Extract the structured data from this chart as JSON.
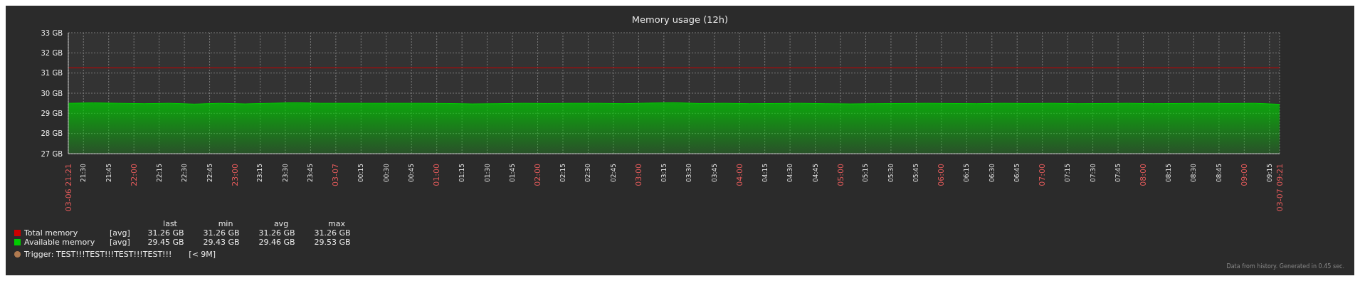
{
  "chart_data": {
    "type": "area",
    "title": "Memory usage (12h)",
    "x": [
      "--03-06T21:21",
      "--03-06T21:36",
      "--03-06T21:51",
      "--03-06T22:06",
      "--03-06T22:21",
      "--03-06T22:36",
      "--03-06T22:51",
      "--03-06T23:06",
      "--03-06T23:21",
      "--03-06T23:36",
      "--03-06T23:51",
      "--03-07T00:06",
      "--03-07T00:21",
      "--03-07T00:36",
      "--03-07T00:51",
      "--03-07T01:06",
      "--03-07T01:21",
      "--03-07T01:36",
      "--03-07T01:51",
      "--03-07T02:06",
      "--03-07T02:21",
      "--03-07T02:36",
      "--03-07T02:51",
      "--03-07T03:06",
      "--03-07T03:21",
      "--03-07T03:36",
      "--03-07T03:51",
      "--03-07T04:06",
      "--03-07T04:21",
      "--03-07T04:36",
      "--03-07T04:51",
      "--03-07T05:06",
      "--03-07T05:21",
      "--03-07T05:36",
      "--03-07T05:51",
      "--03-07T06:06",
      "--03-07T06:21",
      "--03-07T06:36",
      "--03-07T06:51",
      "--03-07T07:06",
      "--03-07T07:21",
      "--03-07T07:36",
      "--03-07T07:51",
      "--03-07T08:06",
      "--03-07T08:21",
      "--03-07T08:36",
      "--03-07T08:51",
      "--03-07T09:06",
      "--03-07T09:21"
    ],
    "series": [
      {
        "name": "Total memory",
        "type": "line",
        "color": "#cc0000",
        "values": [
          31.26,
          31.26,
          31.26,
          31.26,
          31.26,
          31.26,
          31.26,
          31.26,
          31.26,
          31.26,
          31.26,
          31.26,
          31.26,
          31.26,
          31.26,
          31.26,
          31.26,
          31.26,
          31.26,
          31.26,
          31.26,
          31.26,
          31.26,
          31.26,
          31.26,
          31.26,
          31.26,
          31.26,
          31.26,
          31.26,
          31.26,
          31.26,
          31.26,
          31.26,
          31.26,
          31.26,
          31.26,
          31.26,
          31.26,
          31.26,
          31.26,
          31.26,
          31.26,
          31.26,
          31.26,
          31.26,
          31.26,
          31.26,
          31.26
        ]
      },
      {
        "name": "Available memory",
        "color": "#00cc00",
        "values": [
          29.5,
          29.52,
          29.5,
          29.48,
          29.5,
          29.46,
          29.5,
          29.47,
          29.5,
          29.53,
          29.5,
          29.5,
          29.5,
          29.5,
          29.5,
          29.49,
          29.47,
          29.48,
          29.5,
          29.49,
          29.5,
          29.5,
          29.48,
          29.51,
          29.53,
          29.49,
          29.5,
          29.48,
          29.49,
          29.5,
          29.48,
          29.47,
          29.48,
          29.49,
          29.5,
          29.49,
          29.48,
          29.5,
          29.49,
          29.5,
          29.48,
          29.49,
          29.5,
          29.48,
          29.49,
          29.5,
          29.49,
          29.5,
          29.45
        ]
      }
    ],
    "xlim": [
      "--03-06T21:21",
      "--03-07T09:21"
    ],
    "xticks": [
      {
        "value": "--03-06T21:21",
        "label": "03-06 21:21"
      },
      {
        "value": "--03-06T21:30",
        "label": "21:30"
      },
      {
        "value": "--03-06T21:45",
        "label": "21:45"
      },
      {
        "value": "--03-06T22:00",
        "label": "22:00"
      },
      {
        "value": "--03-06T22:15",
        "label": "22:15"
      },
      {
        "value": "--03-06T22:30",
        "label": "22:30"
      },
      {
        "value": "--03-06T22:45",
        "label": "22:45"
      },
      {
        "value": "--03-06T23:00",
        "label": "23:00"
      },
      {
        "value": "--03-06T23:15",
        "label": "23:15"
      },
      {
        "value": "--03-06T23:30",
        "label": "23:30"
      },
      {
        "value": "--03-06T23:45",
        "label": "23:45"
      },
      {
        "value": "--03-07T00:00",
        "label": "03-07"
      },
      {
        "value": "--03-07T00:15",
        "label": "00:15"
      },
      {
        "value": "--03-07T00:30",
        "label": "00:30"
      },
      {
        "value": "--03-07T00:45",
        "label": "00:45"
      },
      {
        "value": "--03-07T01:00",
        "label": "01:00"
      },
      {
        "value": "--03-07T01:15",
        "label": "01:15"
      },
      {
        "value": "--03-07T01:30",
        "label": "01:30"
      },
      {
        "value": "--03-07T01:45",
        "label": "01:45"
      },
      {
        "value": "--03-07T02:00",
        "label": "02:00"
      },
      {
        "value": "--03-07T02:15",
        "label": "02:15"
      },
      {
        "value": "--03-07T02:30",
        "label": "02:30"
      },
      {
        "value": "--03-07T02:45",
        "label": "02:45"
      },
      {
        "value": "--03-07T03:00",
        "label": "03:00"
      },
      {
        "value": "--03-07T03:15",
        "label": "03:15"
      },
      {
        "value": "--03-07T03:30",
        "label": "03:30"
      },
      {
        "value": "--03-07T03:45",
        "label": "03:45"
      },
      {
        "value": "--03-07T04:00",
        "label": "04:00"
      },
      {
        "value": "--03-07T04:15",
        "label": "04:15"
      },
      {
        "value": "--03-07T04:30",
        "label": "04:30"
      },
      {
        "value": "--03-07T04:45",
        "label": "04:45"
      },
      {
        "value": "--03-07T05:00",
        "label": "05:00"
      },
      {
        "value": "--03-07T05:15",
        "label": "05:15"
      },
      {
        "value": "--03-07T05:30",
        "label": "05:30"
      },
      {
        "value": "--03-07T05:45",
        "label": "05:45"
      },
      {
        "value": "--03-07T06:00",
        "label": "06:00"
      },
      {
        "value": "--03-07T06:15",
        "label": "06:15"
      },
      {
        "value": "--03-07T06:30",
        "label": "06:30"
      },
      {
        "value": "--03-07T06:45",
        "label": "06:45"
      },
      {
        "value": "--03-07T07:00",
        "label": "07:00"
      },
      {
        "value": "--03-07T07:15",
        "label": "07:15"
      },
      {
        "value": "--03-07T07:30",
        "label": "07:30"
      },
      {
        "value": "--03-07T07:45",
        "label": "07:45"
      },
      {
        "value": "--03-07T08:00",
        "label": "08:00"
      },
      {
        "value": "--03-07T08:15",
        "label": "08:15"
      },
      {
        "value": "--03-07T08:30",
        "label": "08:30"
      },
      {
        "value": "--03-07T08:45",
        "label": "08:45"
      },
      {
        "value": "--03-07T09:00",
        "label": "09:00"
      },
      {
        "value": "--03-07T09:15",
        "label": "09:15"
      },
      {
        "value": "--03-07T09:21",
        "label": "03-07 09:21"
      }
    ],
    "ylim": [
      27,
      33
    ],
    "yticks": [
      {
        "value": 27,
        "label": "27 GB"
      },
      {
        "value": 28,
        "label": "28 GB"
      },
      {
        "value": 29,
        "label": "29 GB"
      },
      {
        "value": 30,
        "label": "30 GB"
      },
      {
        "value": 31,
        "label": "31 GB"
      },
      {
        "value": 32,
        "label": "32 GB"
      },
      {
        "value": 33,
        "label": "33 GB"
      }
    ],
    "grid": true,
    "legend": "bottom left",
    "annotations": [
      "last",
      "min",
      "avg",
      "max",
      "[avg]",
      "31.26 GB",
      "31.26 GB",
      "31.26 GB",
      "31.26 GB",
      "[avg]",
      "29.45 GB",
      "29.43 GB",
      "29.46 GB",
      "29.53 GB",
      "Trigger: TEST!!!TEST!!!TEST!!!TEST!!!",
      "[< 9M]",
      "Data from history. Generated in 0.45 sec."
    ]
  }
}
